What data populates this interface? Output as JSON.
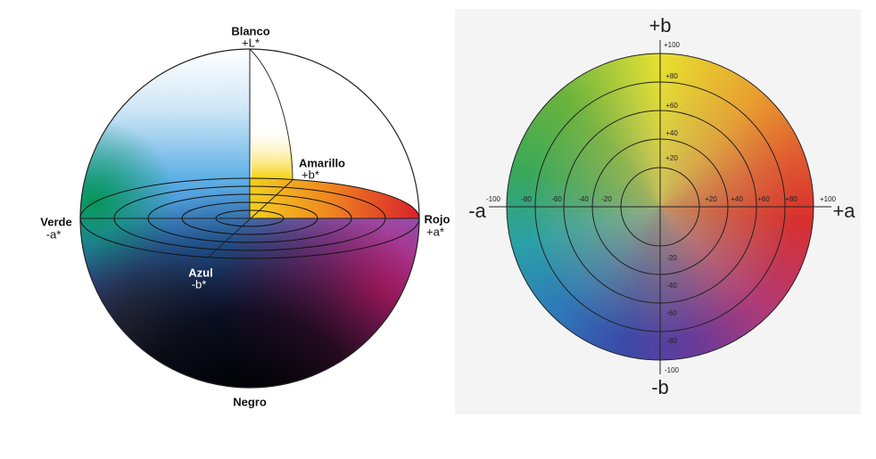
{
  "sphere": {
    "top": {
      "label": "Blanco",
      "axis": "+L*"
    },
    "yellow": {
      "label": "Amarillo",
      "axis": "+b*"
    },
    "green": {
      "label": "Verde",
      "axis": "-a*"
    },
    "red": {
      "label": "Rojo",
      "axis": "+a*"
    },
    "blue": {
      "label": "Azul",
      "axis": "-b*"
    },
    "bottom": {
      "label": "Negro"
    }
  },
  "disc": {
    "axes": {
      "top": "+b",
      "left": "-a",
      "right": "+a",
      "bottom": "-b"
    },
    "a_ticks": [
      "-100",
      "-80",
      "-60",
      "-40",
      "-20",
      "+20",
      "+40",
      "+60",
      "+80",
      "+100"
    ],
    "b_ticks": [
      "+100",
      "+80",
      "+60",
      "+40",
      "+20",
      "-20",
      "-40",
      "-60",
      "-80",
      "-100"
    ]
  }
}
